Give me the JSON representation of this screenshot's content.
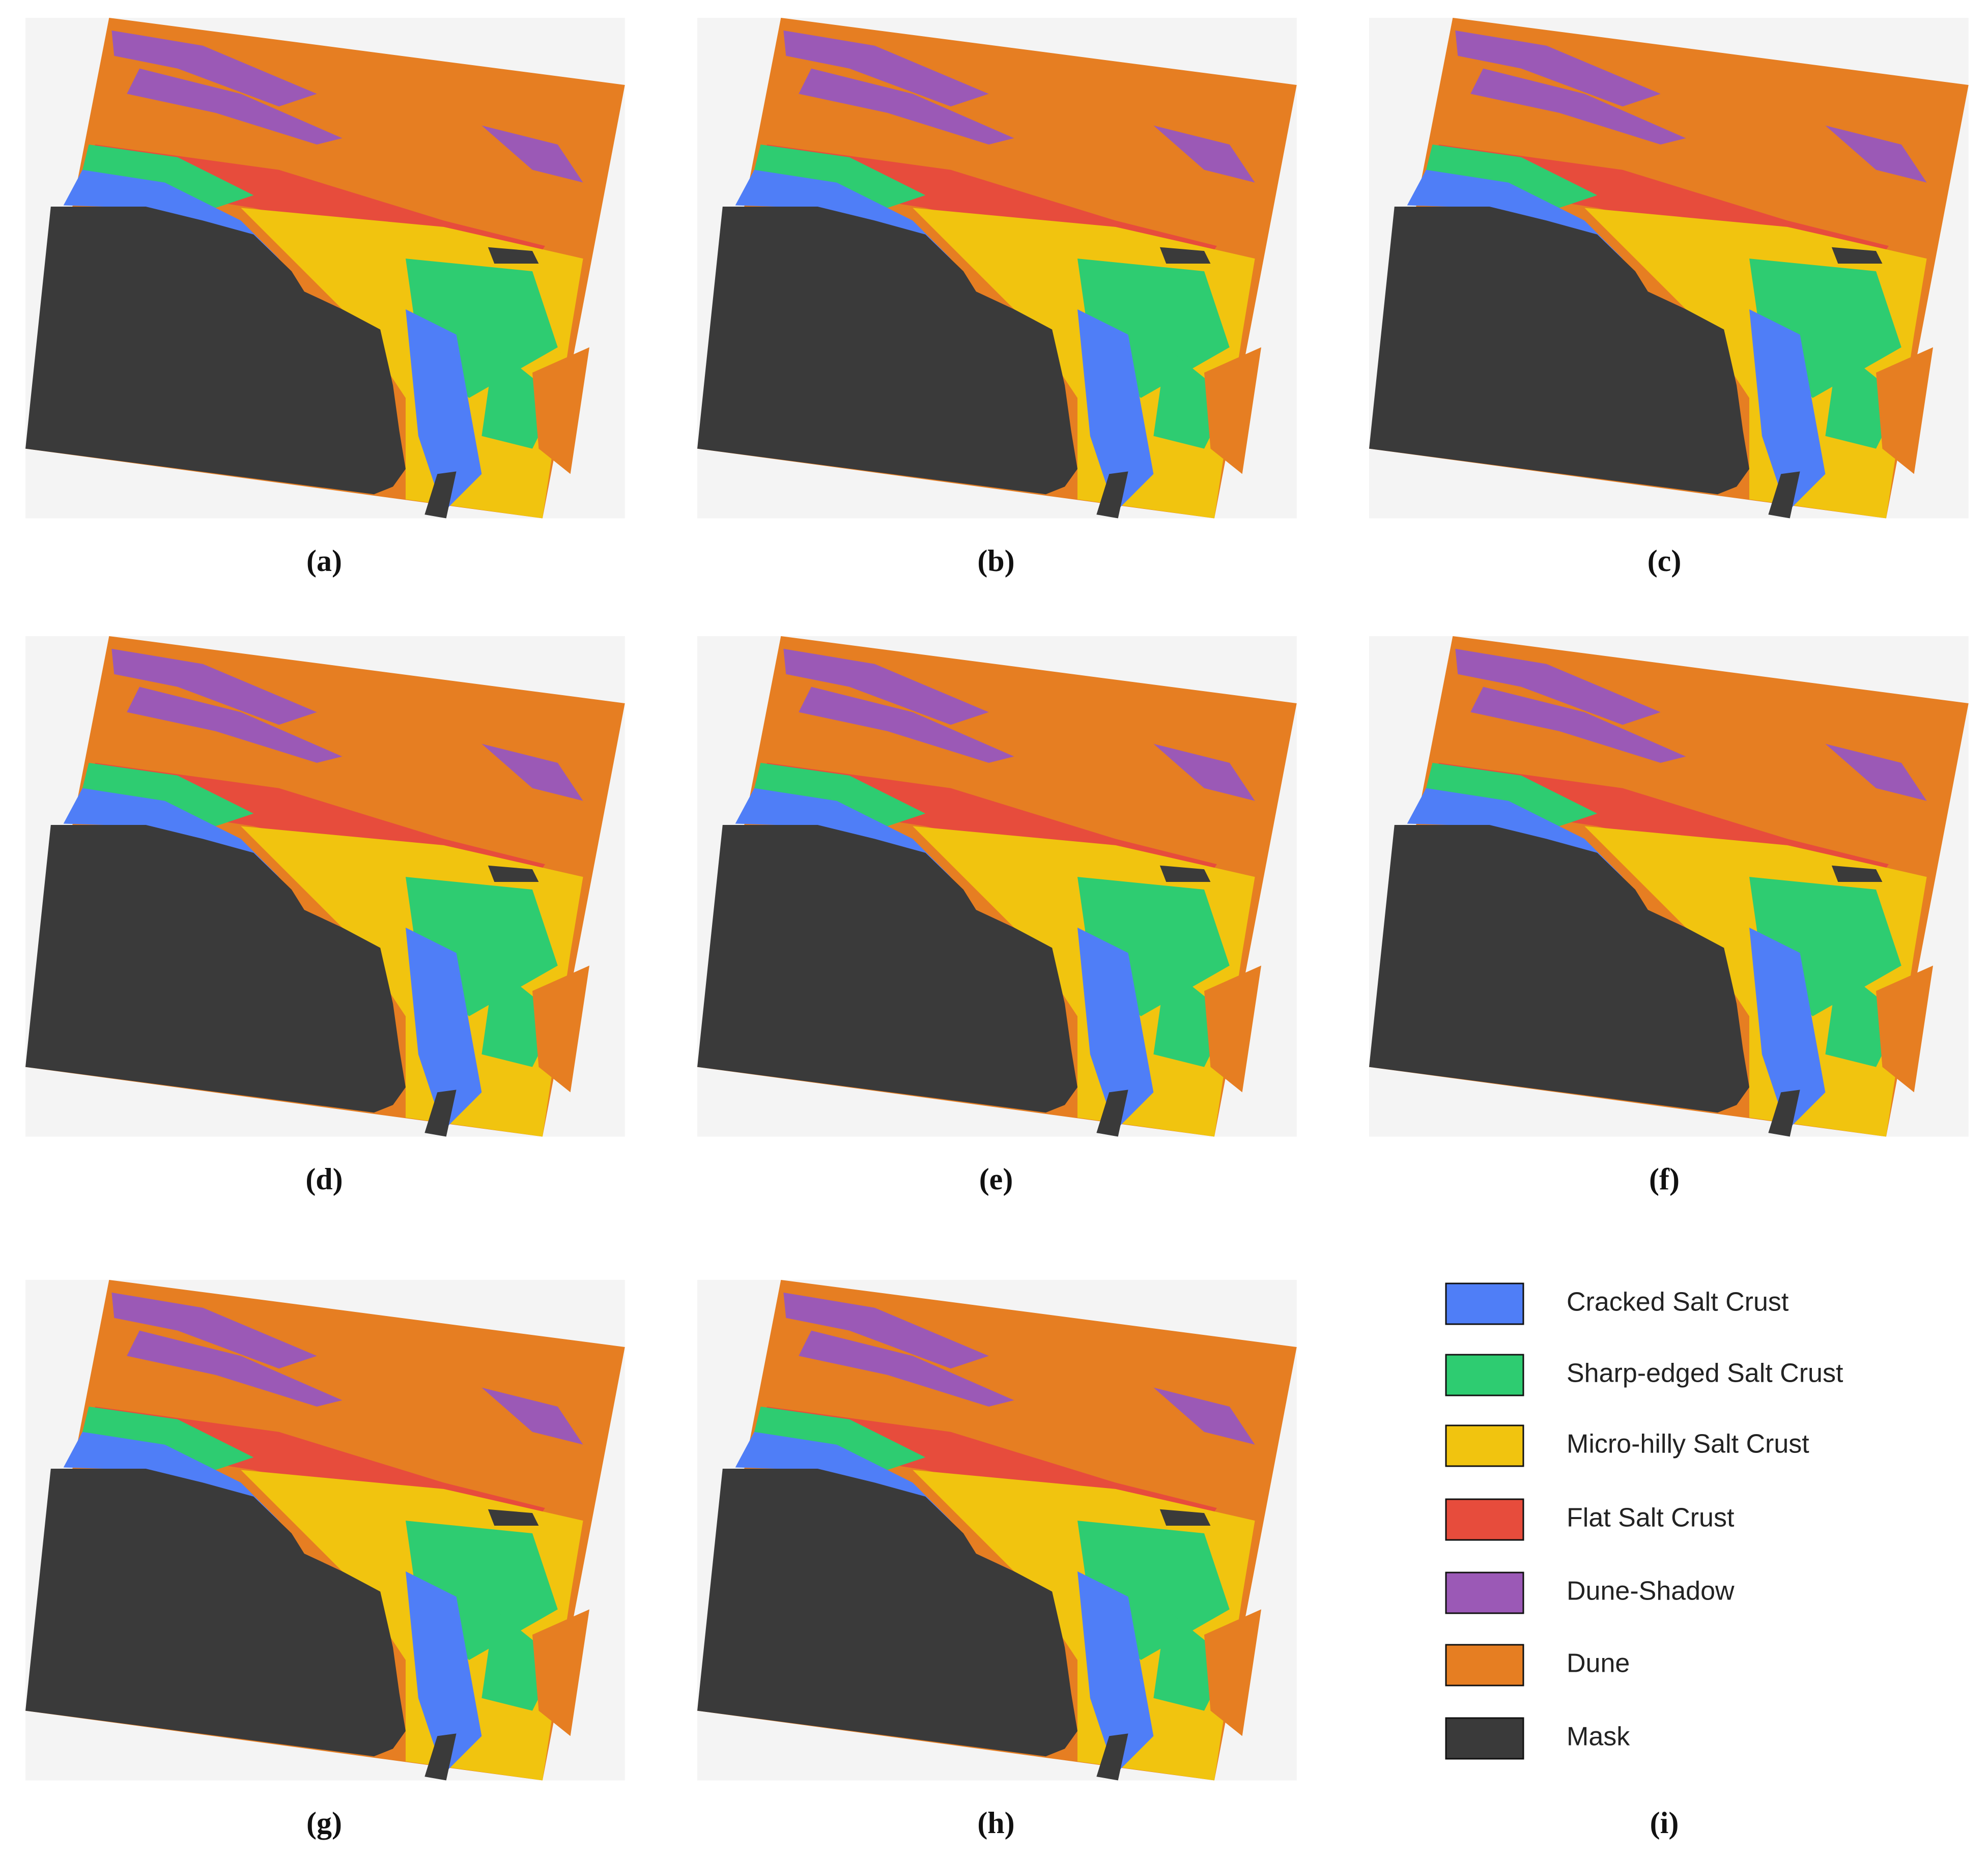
{
  "panels": [
    {
      "label": "(a)"
    },
    {
      "label": "(b)"
    },
    {
      "label": "(c)"
    },
    {
      "label": "(d)"
    },
    {
      "label": "(e)"
    },
    {
      "label": "(f)"
    },
    {
      "label": "(g)"
    },
    {
      "label": "(h)"
    },
    {
      "label": "(i)"
    }
  ],
  "legend": {
    "items": [
      {
        "name": "Cracked Salt Crust",
        "color": "#4f7ef7"
      },
      {
        "name": "Sharp-edged Salt Crust",
        "color": "#2ecc71"
      },
      {
        "name": "Micro-hilly Salt Crust",
        "color": "#f1c40f"
      },
      {
        "name": "Flat Salt Crust",
        "color": "#e74c3c"
      },
      {
        "name": "Dune-Shadow",
        "color": "#9b59b6"
      },
      {
        "name": "Dune",
        "color": "#e67e22"
      },
      {
        "name": "Mask",
        "color": "#3a3a3a"
      }
    ]
  }
}
